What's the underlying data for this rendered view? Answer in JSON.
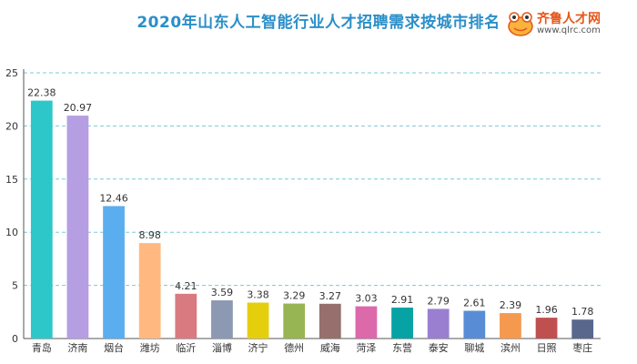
{
  "title": "2020年山东人工智能行业人才招聘需求按城市排名",
  "logo": {
    "icon": "frog-mascot-icon",
    "name": "齐鲁人才网",
    "url": "www.qlrc.com"
  },
  "chart_data": {
    "type": "bar",
    "title": "2020年山东人工智能行业人才招聘需求按城市排名",
    "xlabel": "",
    "ylabel": "",
    "ylim": [
      0,
      25
    ],
    "yticks": [
      0,
      5,
      10,
      15,
      20,
      25
    ],
    "grid": true,
    "categories": [
      "青岛",
      "济南",
      "烟台",
      "潍坊",
      "临沂",
      "淄博",
      "济宁",
      "德州",
      "威海",
      "菏泽",
      "东营",
      "泰安",
      "聊城",
      "滨州",
      "日照",
      "枣庄"
    ],
    "values": [
      22.38,
      20.97,
      12.46,
      8.98,
      4.21,
      3.59,
      3.38,
      3.29,
      3.27,
      3.03,
      2.91,
      2.79,
      2.61,
      2.39,
      1.96,
      1.78
    ],
    "value_labels": [
      "22.38",
      "20.97",
      "12.46",
      "8.98",
      "4.21",
      "3.59",
      "3.38",
      "3.29",
      "3.27",
      "3.03",
      "2.91",
      "2.79",
      "2.61",
      "2.39",
      "1.96",
      "1.78"
    ],
    "colors": [
      "#2ec7c9",
      "#b59ee2",
      "#5aaeef",
      "#ffb980",
      "#d87a80",
      "#8d98b3",
      "#e5cf0d",
      "#97b552",
      "#95706d",
      "#dc69aa",
      "#07a2a4",
      "#9a7fd1",
      "#588dd5",
      "#f5994e",
      "#c05050",
      "#59678c"
    ]
  }
}
